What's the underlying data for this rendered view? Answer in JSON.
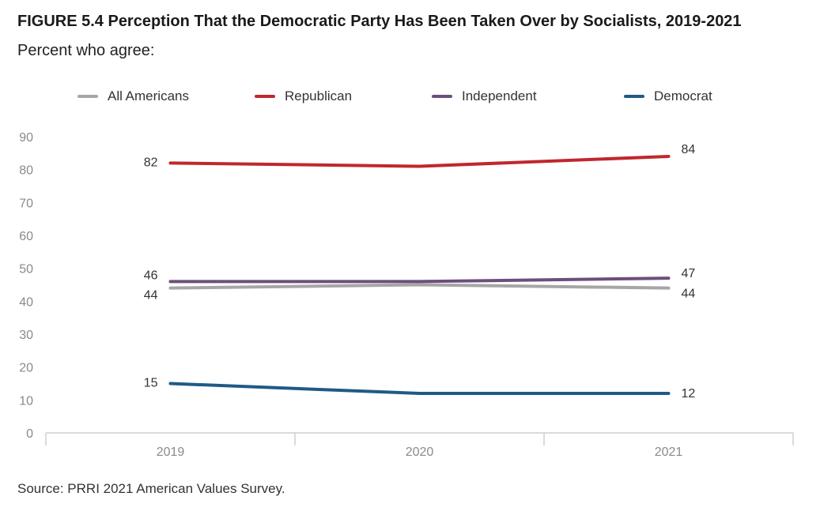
{
  "figure": {
    "title": "FIGURE 5.4  Perception That the Democratic Party Has Been Taken Over by Socialists, 2019-2021",
    "subtitle": "Percent who agree:",
    "source": "Source: PRRI 2021 American Values Survey."
  },
  "chart_data": {
    "type": "line",
    "title": "FIGURE 5.4  Perception That the Democratic Party Has Been Taken Over by Socialists, 2019-2021",
    "subtitle": "Percent who agree:",
    "xlabel": "",
    "ylabel": "",
    "categories": [
      "2019",
      "2020",
      "2021"
    ],
    "ylim": [
      0,
      90
    ],
    "yticks": [
      0,
      10,
      20,
      30,
      40,
      50,
      60,
      70,
      80,
      90
    ],
    "grid": false,
    "legend_position": "top",
    "series": [
      {
        "name": "All Americans",
        "color": "#a6a6a6",
        "values": [
          44,
          45,
          44
        ],
        "labels": [
          "44",
          "",
          "44"
        ]
      },
      {
        "name": "Republican",
        "color": "#c0272d",
        "values": [
          82,
          81,
          84
        ],
        "labels": [
          "82",
          "",
          "84"
        ]
      },
      {
        "name": "Independent",
        "color": "#6b4f7c",
        "values": [
          46,
          46,
          47
        ],
        "labels": [
          "46",
          "",
          "47"
        ]
      },
      {
        "name": "Democrat",
        "color": "#1f5a85",
        "values": [
          15,
          12,
          12
        ],
        "labels": [
          "15",
          "",
          "12"
        ]
      }
    ]
  }
}
